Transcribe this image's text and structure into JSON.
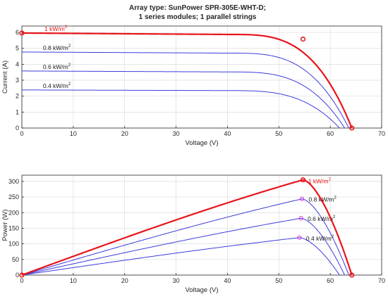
{
  "figure": {
    "title_line1": "Array type: SunPower SPR-305E-WHT-D;",
    "title_line2": "1 series modules; 1 parallel strings"
  },
  "colors": {
    "highlight": "#e8141b",
    "series": "#3b3bdc",
    "mpp_marker_minor": "#dd22dd",
    "grid": "#dcdcdc",
    "axis": "#262626"
  },
  "chart_data": [
    {
      "type": "line",
      "id": "iv",
      "title": "Array type: SunPower SPR-305E-WHT-D; 1 series modules; 1 parallel strings",
      "xlabel": "Voltage (V)",
      "ylabel": "Current (A)",
      "xlim": [
        0,
        70
      ],
      "ylim": [
        0,
        6.4
      ],
      "xticks": [
        0,
        10,
        20,
        30,
        40,
        50,
        60,
        70
      ],
      "yticks": [
        0,
        1,
        2,
        3,
        4,
        5,
        6
      ],
      "grid": true,
      "series": [
        {
          "name": "1 kW/m2",
          "label_main": "1 kW/m",
          "label_sup": "2",
          "highlight": true,
          "isc": 5.96,
          "voc": 64.2,
          "mpp_v": 54.7,
          "mpp_i": 5.58,
          "flat_end_i": 5.87
        },
        {
          "name": "0.8 kW/m2",
          "label_main": "0.8 kW/m",
          "label_sup": "2",
          "highlight": false,
          "isc": 4.77,
          "voc": 63.6,
          "mpp_v": 54.5,
          "mpp_i": 4.47,
          "flat_end_i": 4.7
        },
        {
          "name": "0.6 kW/m2",
          "label_main": "0.6 kW/m",
          "label_sup": "2",
          "highlight": false,
          "isc": 3.58,
          "voc": 62.8,
          "mpp_v": 54.3,
          "mpp_i": 3.35,
          "flat_end_i": 3.52
        },
        {
          "name": "0.4 kW/m2",
          "label_main": "0.4 kW/m",
          "label_sup": "2",
          "highlight": false,
          "isc": 2.39,
          "voc": 61.8,
          "mpp_v": 54.0,
          "mpp_i": 2.22,
          "flat_end_i": 2.35
        }
      ],
      "markers": [
        {
          "x": 0,
          "y": 5.96
        },
        {
          "x": 54.7,
          "y": 5.58
        },
        {
          "x": 64.2,
          "y": 0
        }
      ]
    },
    {
      "type": "line",
      "id": "pv",
      "xlabel": "Voltage (V)",
      "ylabel": "Power (W)",
      "xlim": [
        0,
        70
      ],
      "ylim": [
        0,
        320
      ],
      "xticks": [
        0,
        10,
        20,
        30,
        40,
        50,
        60,
        70
      ],
      "yticks": [
        0,
        50,
        100,
        150,
        200,
        250,
        300
      ],
      "grid": true,
      "series": [
        {
          "name": "1 kW/m2",
          "label_main": "1 kW/m",
          "label_sup": "2",
          "highlight": true,
          "voc": 64.2,
          "mpp_v": 54.7,
          "mpp_p": 305
        },
        {
          "name": "0.8 kW/m2",
          "label_main": "0.8 kW/m",
          "label_sup": "2",
          "highlight": false,
          "voc": 63.6,
          "mpp_v": 54.5,
          "mpp_p": 244
        },
        {
          "name": "0.6 kW/m2",
          "label_main": "0.6 kW/m",
          "label_sup": "2",
          "highlight": false,
          "voc": 62.8,
          "mpp_v": 54.3,
          "mpp_p": 182
        },
        {
          "name": "0.4 kW/m2",
          "label_main": "0.4 kW/m",
          "label_sup": "2",
          "highlight": false,
          "voc": 61.8,
          "mpp_v": 54.0,
          "mpp_p": 120
        }
      ],
      "markers": [
        {
          "x": 0,
          "y": 0
        },
        {
          "x": 54.7,
          "y": 305
        },
        {
          "x": 64.2,
          "y": 0
        }
      ]
    }
  ]
}
